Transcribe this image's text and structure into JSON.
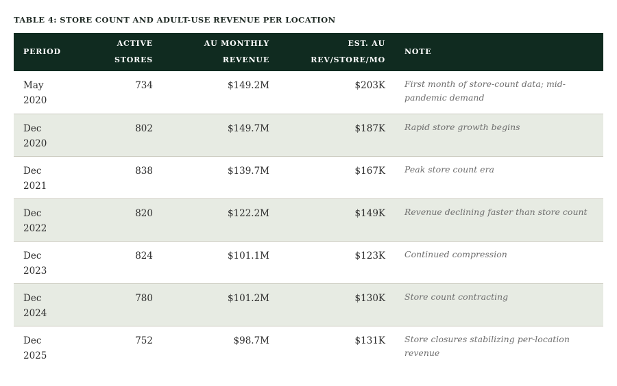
{
  "title": "TABLE 4: STORE COUNT AND ADULT-USE REVENUE PER LOCATION",
  "columns": {
    "period": "PERIOD",
    "stores": [
      "ACTIVE",
      "STORES"
    ],
    "revenue": [
      "AU MONTHLY",
      "REVENUE"
    ],
    "rev_per_store": [
      "EST. AU",
      "REV/STORE/MO"
    ],
    "note": "NOTE"
  },
  "rows": [
    {
      "period": [
        "May",
        "2020"
      ],
      "stores": "734",
      "revenue": "$149.2M",
      "rev_per_store": "$203K",
      "note": "First month of store-count data; mid-pandemic demand"
    },
    {
      "period": [
        "Dec",
        "2020"
      ],
      "stores": "802",
      "revenue": "$149.7M",
      "rev_per_store": "$187K",
      "note": "Rapid store growth begins"
    },
    {
      "period": [
        "Dec",
        "2021"
      ],
      "stores": "838",
      "revenue": "$139.7M",
      "rev_per_store": "$167K",
      "note": "Peak store count era"
    },
    {
      "period": [
        "Dec",
        "2022"
      ],
      "stores": "820",
      "revenue": "$122.2M",
      "rev_per_store": "$149K",
      "note": "Revenue declining faster than store count"
    },
    {
      "period": [
        "Dec",
        "2023"
      ],
      "stores": "824",
      "revenue": "$101.1M",
      "rev_per_store": "$123K",
      "note": "Continued compression"
    },
    {
      "period": [
        "Dec",
        "2024"
      ],
      "stores": "780",
      "revenue": "$101.2M",
      "rev_per_store": "$130K",
      "note": "Store count contracting"
    },
    {
      "period": [
        "Dec",
        "2025"
      ],
      "stores": "752",
      "revenue": "$98.7M",
      "rev_per_store": "$131K",
      "note": "Store closures stabilizing per-location revenue"
    }
  ]
}
